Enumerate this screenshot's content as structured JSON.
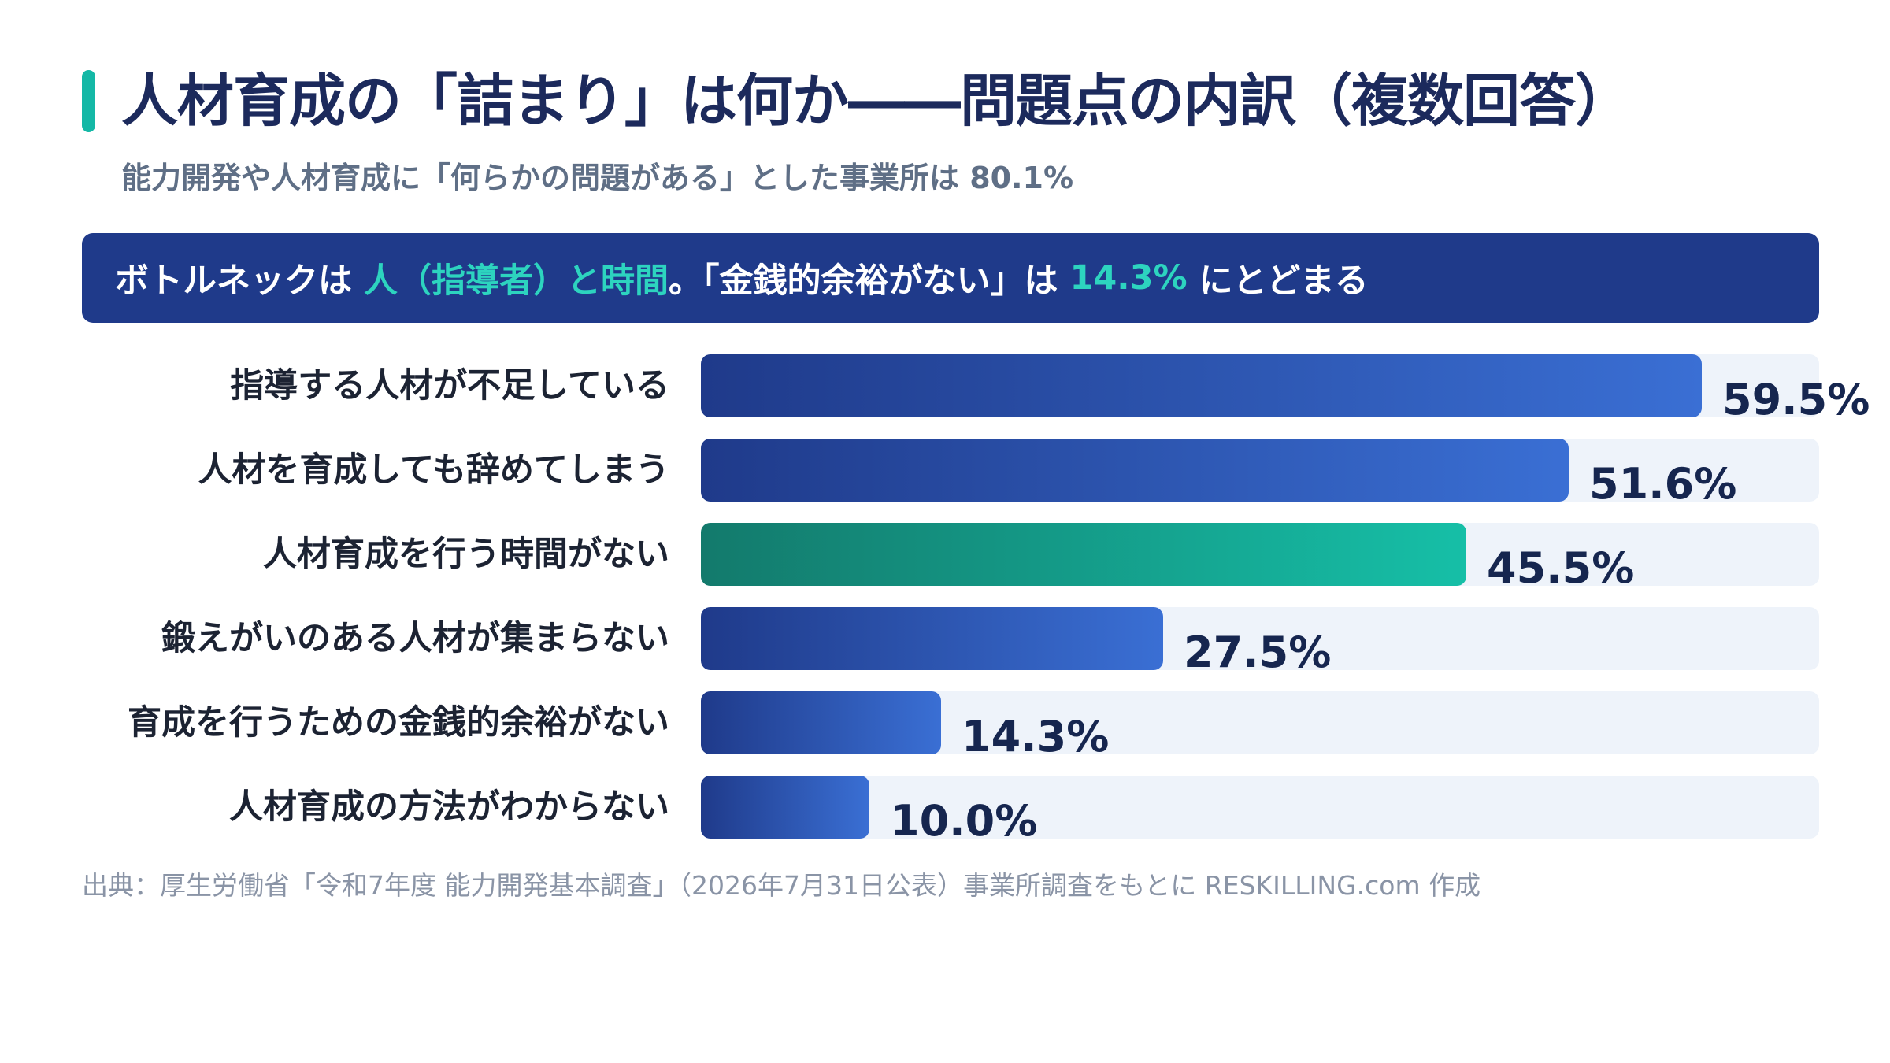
{
  "header": {
    "title": "人材育成の「詰まり」は何か――問題点の内訳（複数回答）",
    "subtitle": "能力開発や人材育成に「何らかの問題がある」とした事業所は 80.1%"
  },
  "callout": {
    "prefix": "ボトルネックは",
    "highlight1": "人（指導者）と時間",
    "middle": "。「金銭的余裕がない」は",
    "highlight2": "14.3%",
    "suffix": "にとどまる"
  },
  "colors": {
    "accent": "#14b8a6",
    "primary": "#1f3a8a",
    "bar_blue_end": "#3a6fd4",
    "bar_teal_start": "#137a6c",
    "bar_teal_end": "#16bfa7",
    "track": "#eef3fa"
  },
  "chart_data": {
    "type": "bar",
    "orientation": "horizontal",
    "categories": [
      "指導する人材が不足している",
      "人材を育成しても辞めてしまう",
      "人材育成を行う時間がない",
      "鍛えがいのある人材が集まらない",
      "育成を行うための金銭的余裕がない",
      "人材育成の方法がわからない"
    ],
    "values": [
      59.5,
      51.6,
      45.5,
      27.5,
      14.3,
      10.0
    ],
    "value_labels": [
      "59.5%",
      "51.6%",
      "45.5%",
      "27.5%",
      "14.3%",
      "10.0%"
    ],
    "highlight_index": 2,
    "xlim": [
      0,
      66.5
    ],
    "grid": false,
    "legend": "none"
  },
  "footer": {
    "source": "出典：厚生労働省「令和7年度 能力開発基本調査」（2026年7月31日公表）事業所調査をもとに RESKILLING.com 作成"
  }
}
